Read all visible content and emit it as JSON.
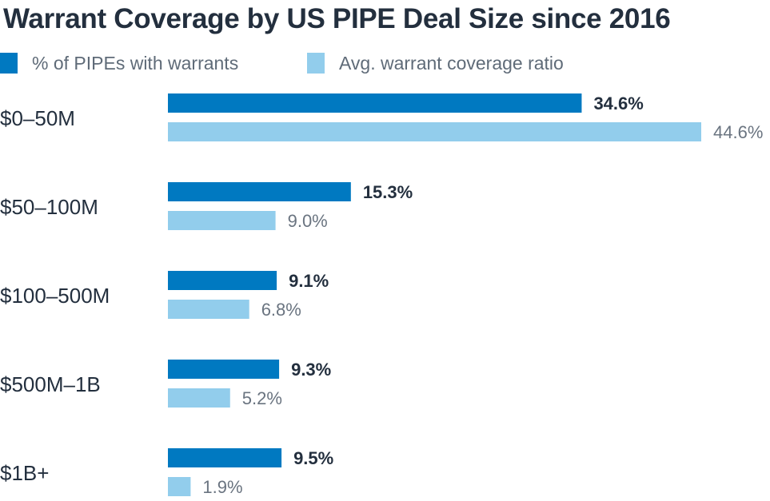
{
  "title": "Warrant Coverage by US PIPE Deal Size since 2016",
  "colors": {
    "series_1": "#0079c1",
    "series_2": "#92cdec",
    "title": "#232f3e",
    "category_label": "#232f3e",
    "value_label_bold": "#232f3e",
    "value_label_light": "#6a7480"
  },
  "legend": [
    {
      "label": "% of PIPEs with warrants",
      "color": "#0079c1"
    },
    {
      "label": "Avg. warrant coverage ratio",
      "color": "#92cdec"
    }
  ],
  "chart_data": {
    "type": "bar",
    "orientation": "horizontal",
    "title": "Warrant Coverage by US PIPE Deal Size since 2016",
    "categories": [
      "$0–50M",
      "$50–100M",
      "$100–500M",
      "$500M–1B",
      "$1B+"
    ],
    "series": [
      {
        "name": "% of PIPEs with warrants",
        "values": [
          34.6,
          15.3,
          9.1,
          9.3,
          9.5
        ],
        "labels": [
          "34.6%",
          "15.3%",
          "9.1%",
          "9.3%",
          "9.5%"
        ]
      },
      {
        "name": "Avg. warrant coverage ratio",
        "values": [
          44.6,
          9.0,
          6.8,
          5.2,
          1.9
        ],
        "labels": [
          "44.6%",
          "9.0%",
          "6.8%",
          "5.2%",
          "1.9%"
        ]
      }
    ],
    "xlim": [
      0,
      44.6
    ],
    "grid": false,
    "legend_position": "top-left"
  }
}
